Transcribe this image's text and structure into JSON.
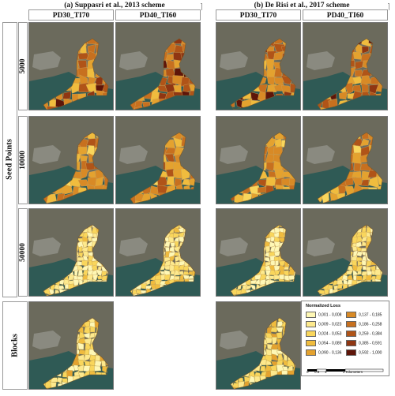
{
  "figure": {
    "group_a_title": "(a) Suppasri et al., 2013 scheme",
    "group_b_title": "(b) De Risi et al., 2017 scheme",
    "columns": [
      "PD30_TI70",
      "PD40_TI60",
      "PD30_TI70",
      "PD40_TI60"
    ],
    "row_group_label": "Seed Points",
    "rows": [
      "5000",
      "10000",
      "50000",
      "Blocks"
    ]
  },
  "legend": {
    "title": "Normalized Loss",
    "classes": [
      {
        "label": "0,001 - 0,008",
        "color": "#fef7b5"
      },
      {
        "label": "0,009 - 0,023",
        "color": "#fde98d"
      },
      {
        "label": "0,024 - 0,053",
        "color": "#f9d65c"
      },
      {
        "label": "0,054 - 0,089",
        "color": "#f0bc3e"
      },
      {
        "label": "0,090 - 0,136",
        "color": "#e4a22f"
      },
      {
        "label": "0,137 - 0,185",
        "color": "#d88a26"
      },
      {
        "label": "0,186 - 0,258",
        "color": "#c7701f"
      },
      {
        "label": "0,259 - 0,384",
        "color": "#b05418"
      },
      {
        "label": "0,385 - 0,591",
        "color": "#8f3612"
      },
      {
        "label": "0,592 - 1,000",
        "color": "#5e1509"
      }
    ],
    "scale": {
      "labels": [
        "0",
        "0.5",
        "1",
        "2 Kilometers"
      ]
    }
  },
  "maps": {
    "row1": {
      "a1": "high",
      "a2": "high",
      "b1": "high",
      "b2": "high"
    },
    "row2": {
      "a1": "medium",
      "a2": "medium",
      "b1": "medium",
      "b2": "medium"
    },
    "row3": {
      "a1": "low",
      "a2": "low",
      "b1": "low",
      "b2": "low"
    },
    "row4": {
      "a1": "blocks",
      "b1": "blocks"
    }
  }
}
